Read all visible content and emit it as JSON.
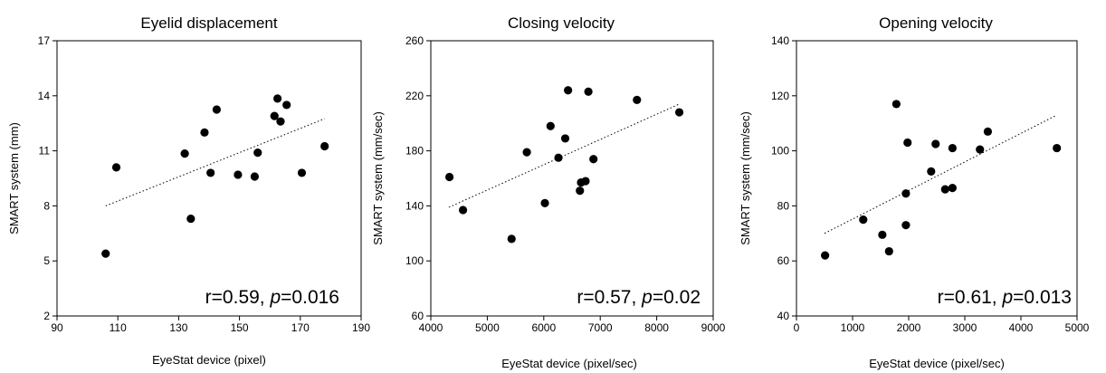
{
  "colors": {
    "marker": "#000000",
    "axis": "#000000",
    "background": "#ffffff"
  },
  "chart_data": [
    {
      "type": "scatter",
      "title": "Eyelid displacement",
      "xlabel": "EyeStat device (pixel)",
      "ylabel": "SMART system (mm)",
      "xlim": [
        90,
        190
      ],
      "ylim": [
        2,
        17
      ],
      "xticks": [
        "90",
        "110",
        "130",
        "150",
        "170",
        "190"
      ],
      "yticks": [
        "2",
        "5",
        "8",
        "11",
        "14",
        "17"
      ],
      "annotation": {
        "prefix": "r=0.59, ",
        "p_symbol": "p",
        "suffix": "=0.016"
      },
      "trendline": {
        "x": [
          106,
          178
        ],
        "y": [
          8.0,
          12.75
        ]
      },
      "grid": false,
      "points": [
        {
          "x": 106,
          "y": 5.4
        },
        {
          "x": 109.5,
          "y": 10.1
        },
        {
          "x": 132,
          "y": 10.85
        },
        {
          "x": 134,
          "y": 7.3
        },
        {
          "x": 138.5,
          "y": 12.0
        },
        {
          "x": 140.5,
          "y": 9.8
        },
        {
          "x": 142.5,
          "y": 13.25
        },
        {
          "x": 149.5,
          "y": 9.7
        },
        {
          "x": 155,
          "y": 9.6
        },
        {
          "x": 156,
          "y": 10.9
        },
        {
          "x": 161.5,
          "y": 12.9
        },
        {
          "x": 162.5,
          "y": 13.85
        },
        {
          "x": 163.5,
          "y": 12.6
        },
        {
          "x": 165.5,
          "y": 13.5
        },
        {
          "x": 170.5,
          "y": 9.8
        },
        {
          "x": 178,
          "y": 11.25
        }
      ]
    },
    {
      "type": "scatter",
      "title": "Closing velocity",
      "xlabel": "EyeStat device (pixel/sec)",
      "ylabel": "SMART system (mm/sec)",
      "xlim": [
        4000,
        9000
      ],
      "ylim": [
        60,
        260
      ],
      "xticks": [
        "4000",
        "5000",
        "6000",
        "7000",
        "8000",
        "9000"
      ],
      "yticks": [
        "60",
        "100",
        "140",
        "180",
        "220",
        "260"
      ],
      "annotation": {
        "prefix": "r=0.57, ",
        "p_symbol": "p",
        "suffix": "=0.02"
      },
      "trendline": {
        "x": [
          4320,
          8400
        ],
        "y": [
          139,
          214
        ]
      },
      "grid": false,
      "points": [
        {
          "x": 4330,
          "y": 161
        },
        {
          "x": 4570,
          "y": 137
        },
        {
          "x": 5430,
          "y": 116
        },
        {
          "x": 5700,
          "y": 179
        },
        {
          "x": 6020,
          "y": 142
        },
        {
          "x": 6120,
          "y": 198
        },
        {
          "x": 6260,
          "y": 175
        },
        {
          "x": 6380,
          "y": 189
        },
        {
          "x": 6430,
          "y": 224
        },
        {
          "x": 6640,
          "y": 151
        },
        {
          "x": 6660,
          "y": 157
        },
        {
          "x": 6740,
          "y": 158
        },
        {
          "x": 6790,
          "y": 223
        },
        {
          "x": 6880,
          "y": 174
        },
        {
          "x": 7650,
          "y": 217
        },
        {
          "x": 8400,
          "y": 208
        }
      ]
    },
    {
      "type": "scatter",
      "title": "Opening velocity",
      "xlabel": "EyeStat device (pixel/sec)",
      "ylabel": "SMART system (mm/sec)",
      "xlim": [
        0,
        5000
      ],
      "ylim": [
        40,
        140
      ],
      "xticks": [
        "0",
        "1000",
        "2000",
        "3000",
        "4000",
        "5000"
      ],
      "yticks": [
        "40",
        "60",
        "80",
        "100",
        "120",
        "140"
      ],
      "annotation": {
        "prefix": "r=0.61, ",
        "p_symbol": "p",
        "suffix": "=0.013"
      },
      "trendline": {
        "x": [
          500,
          4640
        ],
        "y": [
          70,
          113
        ]
      },
      "grid": false,
      "points": [
        {
          "x": 510,
          "y": 62
        },
        {
          "x": 1190,
          "y": 75
        },
        {
          "x": 1530,
          "y": 69.5
        },
        {
          "x": 1650,
          "y": 63.5
        },
        {
          "x": 1780,
          "y": 117
        },
        {
          "x": 1950,
          "y": 73
        },
        {
          "x": 1950,
          "y": 84.5
        },
        {
          "x": 1980,
          "y": 103
        },
        {
          "x": 2400,
          "y": 92.5
        },
        {
          "x": 2480,
          "y": 102.5
        },
        {
          "x": 2650,
          "y": 86
        },
        {
          "x": 2780,
          "y": 86.5
        },
        {
          "x": 2780,
          "y": 101
        },
        {
          "x": 3270,
          "y": 100.5
        },
        {
          "x": 3410,
          "y": 107
        },
        {
          "x": 4640,
          "y": 101
        }
      ]
    }
  ]
}
